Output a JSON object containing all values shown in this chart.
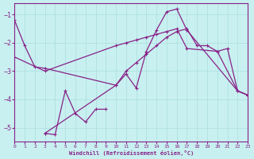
{
  "background_color": "#c8f0f0",
  "line_color": "#882288",
  "grid_color": "#aadddd",
  "xlabel": "Windchill (Refroidissement éolien,°C)",
  "xlim": [
    0,
    23
  ],
  "ylim": [
    -5.5,
    -0.6
  ],
  "yticks": [
    -5,
    -4,
    -3,
    -2,
    -1
  ],
  "xticks": [
    0,
    1,
    2,
    3,
    4,
    5,
    6,
    7,
    8,
    9,
    10,
    11,
    12,
    13,
    14,
    15,
    16,
    17,
    18,
    19,
    20,
    21,
    22,
    23
  ],
  "line1_x": [
    0,
    1,
    2,
    3,
    10,
    11,
    12,
    13,
    14,
    15,
    16,
    17,
    22,
    23
  ],
  "line1_y": [
    -1.2,
    -2.1,
    -2.85,
    -2.9,
    -3.5,
    -3.1,
    -3.6,
    -2.3,
    -1.55,
    -0.9,
    -0.8,
    -1.55,
    -3.7,
    -3.85
  ],
  "line2_x": [
    0,
    3,
    10,
    11,
    12,
    13,
    14,
    15,
    16,
    17,
    20,
    22,
    23
  ],
  "line2_y": [
    -2.5,
    -3.0,
    -2.1,
    -2.0,
    -1.9,
    -1.8,
    -1.7,
    -1.6,
    -1.5,
    -2.2,
    -2.3,
    -3.7,
    -3.85
  ],
  "line3_x": [
    3,
    10,
    11,
    12,
    13,
    14,
    15,
    16,
    17,
    18,
    19,
    20,
    21,
    22,
    23
  ],
  "line3_y": [
    -5.2,
    -3.5,
    -3.0,
    -2.7,
    -2.4,
    -2.1,
    -1.8,
    -1.6,
    -1.5,
    -2.1,
    -2.1,
    -2.3,
    -2.2,
    -3.7,
    -3.85
  ],
  "line4_x": [
    3,
    4,
    5,
    6,
    7,
    8,
    9
  ],
  "line4_y": [
    -5.2,
    -5.25,
    -3.7,
    -4.5,
    -4.8,
    -4.35,
    -4.35
  ]
}
